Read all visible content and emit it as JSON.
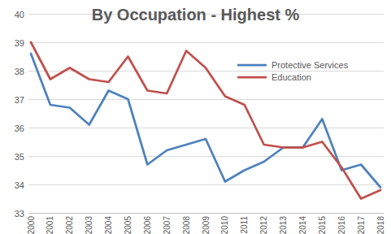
{
  "chart_data": {
    "type": "line",
    "title": "By Occupation - Highest %",
    "categories": [
      "2000",
      "2001",
      "2002",
      "2003",
      "2004",
      "2005",
      "2006",
      "2007",
      "2008",
      "2009",
      "2010",
      "2011",
      "2012",
      "2013",
      "2014",
      "2015",
      "2016",
      "2017",
      "2018"
    ],
    "series": [
      {
        "name": "Protective Services",
        "color": "#4f81bd",
        "values": [
          38.6,
          36.8,
          36.7,
          36.1,
          37.3,
          37.0,
          34.7,
          35.2,
          35.4,
          35.6,
          34.1,
          34.5,
          34.8,
          35.3,
          35.3,
          36.3,
          34.5,
          34.7,
          33.9
        ]
      },
      {
        "name": "Education",
        "color": "#c0504d",
        "values": [
          39.0,
          37.7,
          38.1,
          37.7,
          37.6,
          38.5,
          37.3,
          37.2,
          38.7,
          38.1,
          37.1,
          36.8,
          35.4,
          35.3,
          35.3,
          35.5,
          34.6,
          33.5,
          33.8
        ]
      }
    ],
    "ylim": [
      33,
      40
    ],
    "yticks": [
      33,
      34,
      35,
      36,
      37,
      38,
      39,
      40
    ],
    "grid": true,
    "legend": "upper right"
  }
}
